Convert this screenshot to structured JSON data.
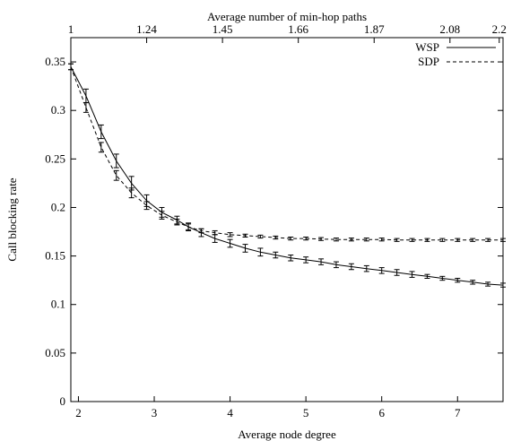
{
  "chart_data": {
    "type": "line",
    "title": "",
    "xlabel": "Average node degree",
    "ylabel": "Call blocking rate",
    "x2label": "Average number of min-hop paths",
    "xlim": [
      1.9,
      7.6
    ],
    "ylim": [
      0,
      0.375
    ],
    "xticks": [
      2,
      3,
      4,
      5,
      6,
      7
    ],
    "yticks": [
      0,
      0.05,
      0.1,
      0.15,
      0.2,
      0.25,
      0.3,
      0.35
    ],
    "x2ticks": [
      {
        "label": "1",
        "at_x": 1.9
      },
      {
        "label": "1.24",
        "at_x": 2.9
      },
      {
        "label": "1.45",
        "at_x": 3.9
      },
      {
        "label": "1.66",
        "at_x": 4.9
      },
      {
        "label": "1.87",
        "at_x": 5.9
      },
      {
        "label": "2.08",
        "at_x": 6.9
      },
      {
        "label": "2.2",
        "at_x": 7.55
      }
    ],
    "grid": false,
    "legend_position": "top-right",
    "series": [
      {
        "name": "WSP",
        "line_style": "solid",
        "x": [
          1.9,
          2.1,
          2.3,
          2.5,
          2.7,
          2.9,
          3.1,
          3.3,
          3.45,
          3.62,
          3.8,
          4.0,
          4.2,
          4.4,
          4.6,
          4.8,
          5.0,
          5.2,
          5.4,
          5.6,
          5.8,
          6.0,
          6.2,
          6.4,
          6.6,
          6.8,
          7.0,
          7.2,
          7.4,
          7.6
        ],
        "y": [
          0.345,
          0.315,
          0.278,
          0.248,
          0.225,
          0.207,
          0.195,
          0.187,
          0.18,
          0.174,
          0.168,
          0.163,
          0.158,
          0.154,
          0.151,
          0.148,
          0.146,
          0.144,
          0.141,
          0.139,
          0.137,
          0.135,
          0.133,
          0.131,
          0.129,
          0.127,
          0.125,
          0.123,
          0.121,
          0.12
        ],
        "err": [
          0.003,
          0.007,
          0.007,
          0.007,
          0.007,
          0.006,
          0.005,
          0.004,
          0.004,
          0.004,
          0.004,
          0.004,
          0.004,
          0.004,
          0.003,
          0.003,
          0.003,
          0.003,
          0.003,
          0.003,
          0.003,
          0.003,
          0.003,
          0.003,
          0.002,
          0.002,
          0.002,
          0.002,
          0.002,
          0.002
        ]
      },
      {
        "name": "SDP",
        "line_style": "dashed",
        "x": [
          1.9,
          2.1,
          2.3,
          2.5,
          2.7,
          2.9,
          3.1,
          3.3,
          3.45,
          3.62,
          3.8,
          4.0,
          4.2,
          4.4,
          4.6,
          4.8,
          5.0,
          5.2,
          5.4,
          5.6,
          5.8,
          6.0,
          6.2,
          6.4,
          6.6,
          6.8,
          7.0,
          7.2,
          7.4,
          7.6
        ],
        "y": [
          0.345,
          0.303,
          0.262,
          0.233,
          0.215,
          0.202,
          0.192,
          0.185,
          0.18,
          0.176,
          0.174,
          0.172,
          0.171,
          0.17,
          0.169,
          0.168,
          0.168,
          0.1675,
          0.167,
          0.167,
          0.167,
          0.167,
          0.1665,
          0.1665,
          0.1665,
          0.1665,
          0.1665,
          0.1665,
          0.1665,
          0.1665
        ],
        "err": [
          0.003,
          0.005,
          0.005,
          0.005,
          0.005,
          0.004,
          0.004,
          0.003,
          0.003,
          0.002,
          0.002,
          0.002,
          0.0015,
          0.0015,
          0.0015,
          0.0015,
          0.0015,
          0.0015,
          0.0015,
          0.0015,
          0.0015,
          0.0015,
          0.0015,
          0.0015,
          0.0015,
          0.0015,
          0.0015,
          0.0015,
          0.0015,
          0.0015
        ]
      }
    ]
  }
}
